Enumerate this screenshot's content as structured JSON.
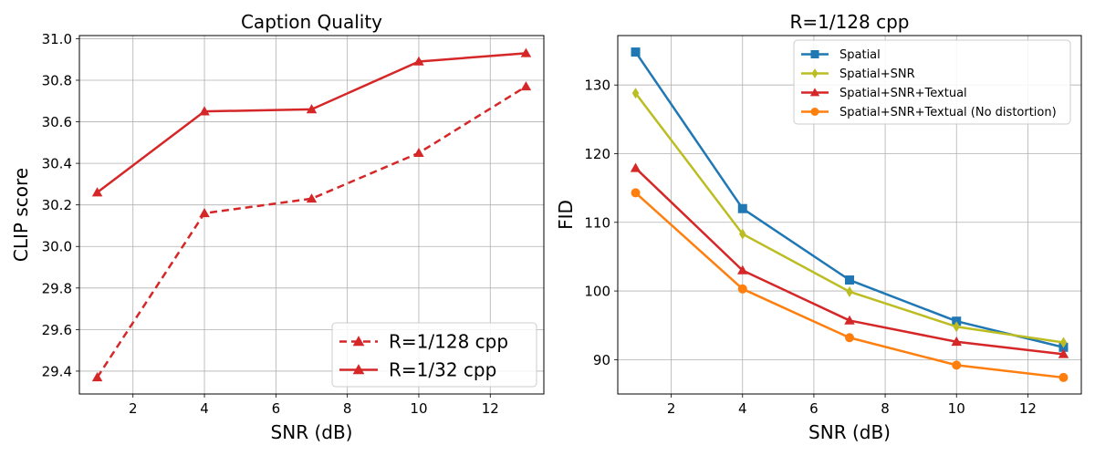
{
  "chart_data": [
    {
      "type": "line",
      "title": "Caption Quality",
      "xlabel": "SNR (dB)",
      "ylabel": "CLIP score",
      "x": [
        1,
        4,
        7,
        10,
        13
      ],
      "xlim": [
        0.5,
        13.5
      ],
      "ylim": [
        29.29,
        31.015
      ],
      "xticks": [
        2,
        4,
        6,
        8,
        10,
        12
      ],
      "yticks": [
        29.4,
        29.6,
        29.8,
        30.0,
        30.2,
        30.4,
        30.6,
        30.8,
        31.0
      ],
      "ytick_decimals": 1,
      "grid": true,
      "legend_position": "lower-right",
      "legend_font_size": "large",
      "series": [
        {
          "name": "R=1/128 cpp",
          "values": [
            29.37,
            30.16,
            30.23,
            30.45,
            30.77
          ],
          "color": "#d62728",
          "marker": "triangle",
          "dashed": true
        },
        {
          "name": "R=1/32 cpp",
          "values": [
            30.26,
            30.65,
            30.66,
            30.89,
            30.93
          ],
          "color": "#d62728",
          "marker": "triangle",
          "dashed": false
        }
      ]
    },
    {
      "type": "line",
      "title": "R=1/128 cpp",
      "xlabel": "SNR (dB)",
      "ylabel": "FID",
      "x": [
        1,
        4,
        7,
        10,
        13
      ],
      "xlim": [
        0.5,
        13.5
      ],
      "ylim": [
        85.0,
        137.2
      ],
      "xticks": [
        2,
        4,
        6,
        8,
        10,
        12
      ],
      "yticks": [
        90,
        100,
        110,
        120,
        130
      ],
      "ytick_decimals": 0,
      "grid": true,
      "legend_position": "top-right",
      "legend_font_size": "small",
      "series": [
        {
          "name": "Spatial",
          "values": [
            134.8,
            112.0,
            101.6,
            95.6,
            91.8
          ],
          "color": "#1f77b4",
          "marker": "square",
          "dashed": false
        },
        {
          "name": "Spatial+SNR",
          "values": [
            128.8,
            108.3,
            99.9,
            94.8,
            92.5
          ],
          "color": "#bcbd22",
          "marker": "diamond",
          "dashed": false
        },
        {
          "name": "Spatial+SNR+Textual",
          "values": [
            117.9,
            103.0,
            95.7,
            92.6,
            90.8
          ],
          "color": "#d62728",
          "marker": "triangle",
          "dashed": false
        },
        {
          "name": "Spatial+SNR+Textual (No distortion)",
          "values": [
            114.3,
            100.3,
            93.2,
            89.2,
            87.4
          ],
          "color": "#ff7f0e",
          "marker": "circle",
          "dashed": false
        }
      ]
    }
  ]
}
